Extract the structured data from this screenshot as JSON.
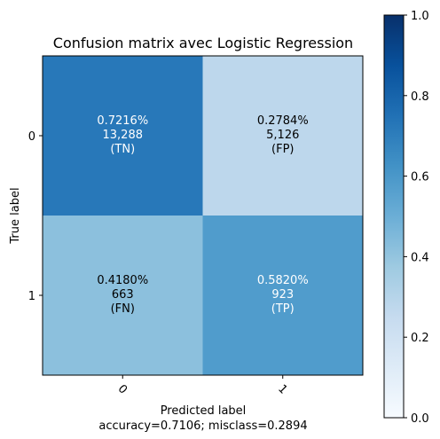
{
  "chart_data": {
    "type": "heatmap",
    "title": "Confusion matrix avec Logistic Regression",
    "xlabel": "Predicted label",
    "xlabel_note": "accuracy=0.7106; misclass=0.2894",
    "ylabel": "True label",
    "x_categories": [
      "0",
      "1"
    ],
    "y_categories": [
      "0",
      "1"
    ],
    "cells": [
      [
        {
          "value": 0.7216,
          "pct_label": "0.7216%",
          "count_label": "13,288",
          "tag": "(TN)"
        },
        {
          "value": 0.2784,
          "pct_label": "0.2784%",
          "count_label": "5,126",
          "tag": "(FP)"
        }
      ],
      [
        {
          "value": 0.418,
          "pct_label": "0.4180%",
          "count_label": "663",
          "tag": "(FN)"
        },
        {
          "value": 0.582,
          "pct_label": "0.5820%",
          "count_label": "923",
          "tag": "(TP)"
        }
      ]
    ],
    "colorbar": {
      "range": [
        0.0,
        1.0
      ],
      "ticks": [
        0.0,
        0.2,
        0.4,
        0.6,
        0.8,
        1.0
      ],
      "tick_labels": [
        "0.0",
        "0.2",
        "0.4",
        "0.6",
        "0.8",
        "1.0"
      ],
      "colormap": "Blues"
    },
    "text_color_light": "#ffffff",
    "text_color_dark": "#000000"
  }
}
